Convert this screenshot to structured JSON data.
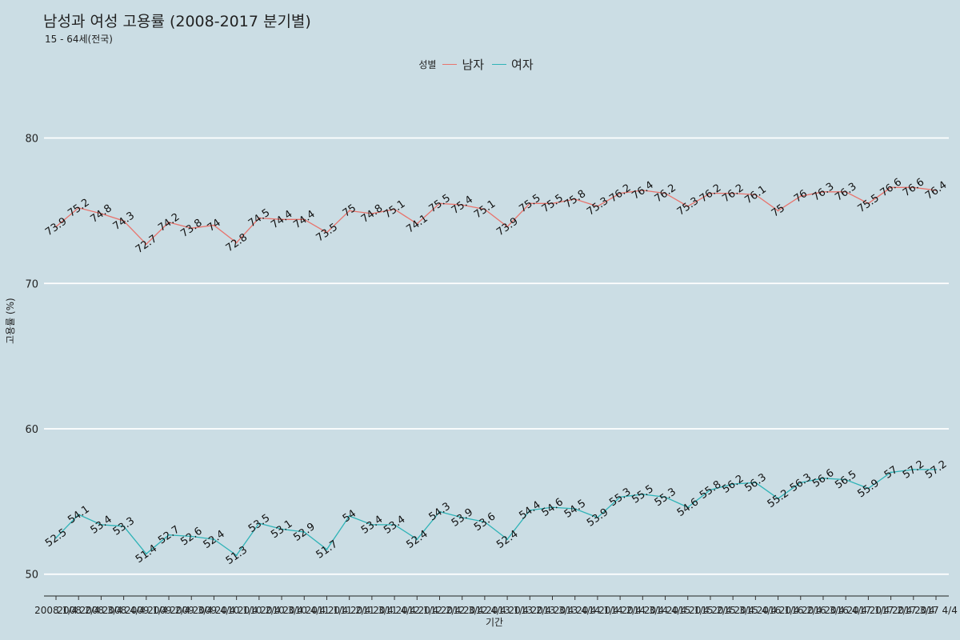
{
  "chart_data": {
    "type": "line",
    "title": "남성과 여성 고용률 (2008-2017 분기별)",
    "subtitle": "15 - 64세(전국)",
    "xlabel": "기간",
    "ylabel": "고용률 (%)",
    "legend_title": "성별",
    "legend_position": "top",
    "ylim": [
      48.5,
      83
    ],
    "yticks": [
      50,
      60,
      70,
      80
    ],
    "grid": "horizontal",
    "categories": [
      "2008 1/4",
      "2008 2/4",
      "2008 3/4",
      "2008 4/4",
      "2009 1/4",
      "2009 2/4",
      "2009 3/4",
      "2009 4/4",
      "2010 1/4",
      "2010 2/4",
      "2010 3/4",
      "2010 4/4",
      "2011 1/4",
      "2011 2/4",
      "2011 3/4",
      "2011 4/4",
      "2012 1/4",
      "2012 2/4",
      "2012 3/4",
      "2012 4/4",
      "2013 1/4",
      "2013 2/4",
      "2013 3/4",
      "2013 4/4",
      "2014 1/4",
      "2014 2/4",
      "2014 3/4",
      "2014 4/4",
      "2015 1/4",
      "2015 2/4",
      "2015 3/4",
      "2015 4/4",
      "2016 1/4",
      "2016 2/4",
      "2016 3/4",
      "2016 4/4",
      "2017 1/4",
      "2017 2/4",
      "2017 3/4",
      "2017 4/4"
    ],
    "series": [
      {
        "name": "남자",
        "color": "#e8736c",
        "values": [
          73.9,
          75.2,
          74.8,
          74.3,
          72.7,
          74.2,
          73.8,
          74.0,
          72.8,
          74.5,
          74.4,
          74.4,
          73.5,
          75.0,
          74.8,
          75.1,
          74.1,
          75.5,
          75.4,
          75.1,
          73.9,
          75.5,
          75.5,
          75.8,
          75.3,
          76.2,
          76.4,
          76.2,
          75.3,
          76.2,
          76.2,
          76.1,
          75.0,
          76.0,
          76.3,
          76.3,
          75.5,
          76.6,
          76.6,
          76.4
        ]
      },
      {
        "name": "여자",
        "color": "#2fb3b7",
        "values": [
          52.5,
          54.1,
          53.4,
          53.3,
          51.4,
          52.7,
          52.6,
          52.4,
          51.3,
          53.5,
          53.1,
          52.9,
          51.7,
          54.0,
          53.4,
          53.4,
          52.4,
          54.3,
          53.9,
          53.6,
          52.4,
          54.4,
          54.6,
          54.5,
          53.9,
          55.3,
          55.5,
          55.3,
          54.6,
          55.8,
          56.2,
          56.3,
          55.2,
          56.3,
          56.6,
          56.5,
          55.9,
          57.0,
          57.2,
          57.2
        ]
      }
    ]
  }
}
